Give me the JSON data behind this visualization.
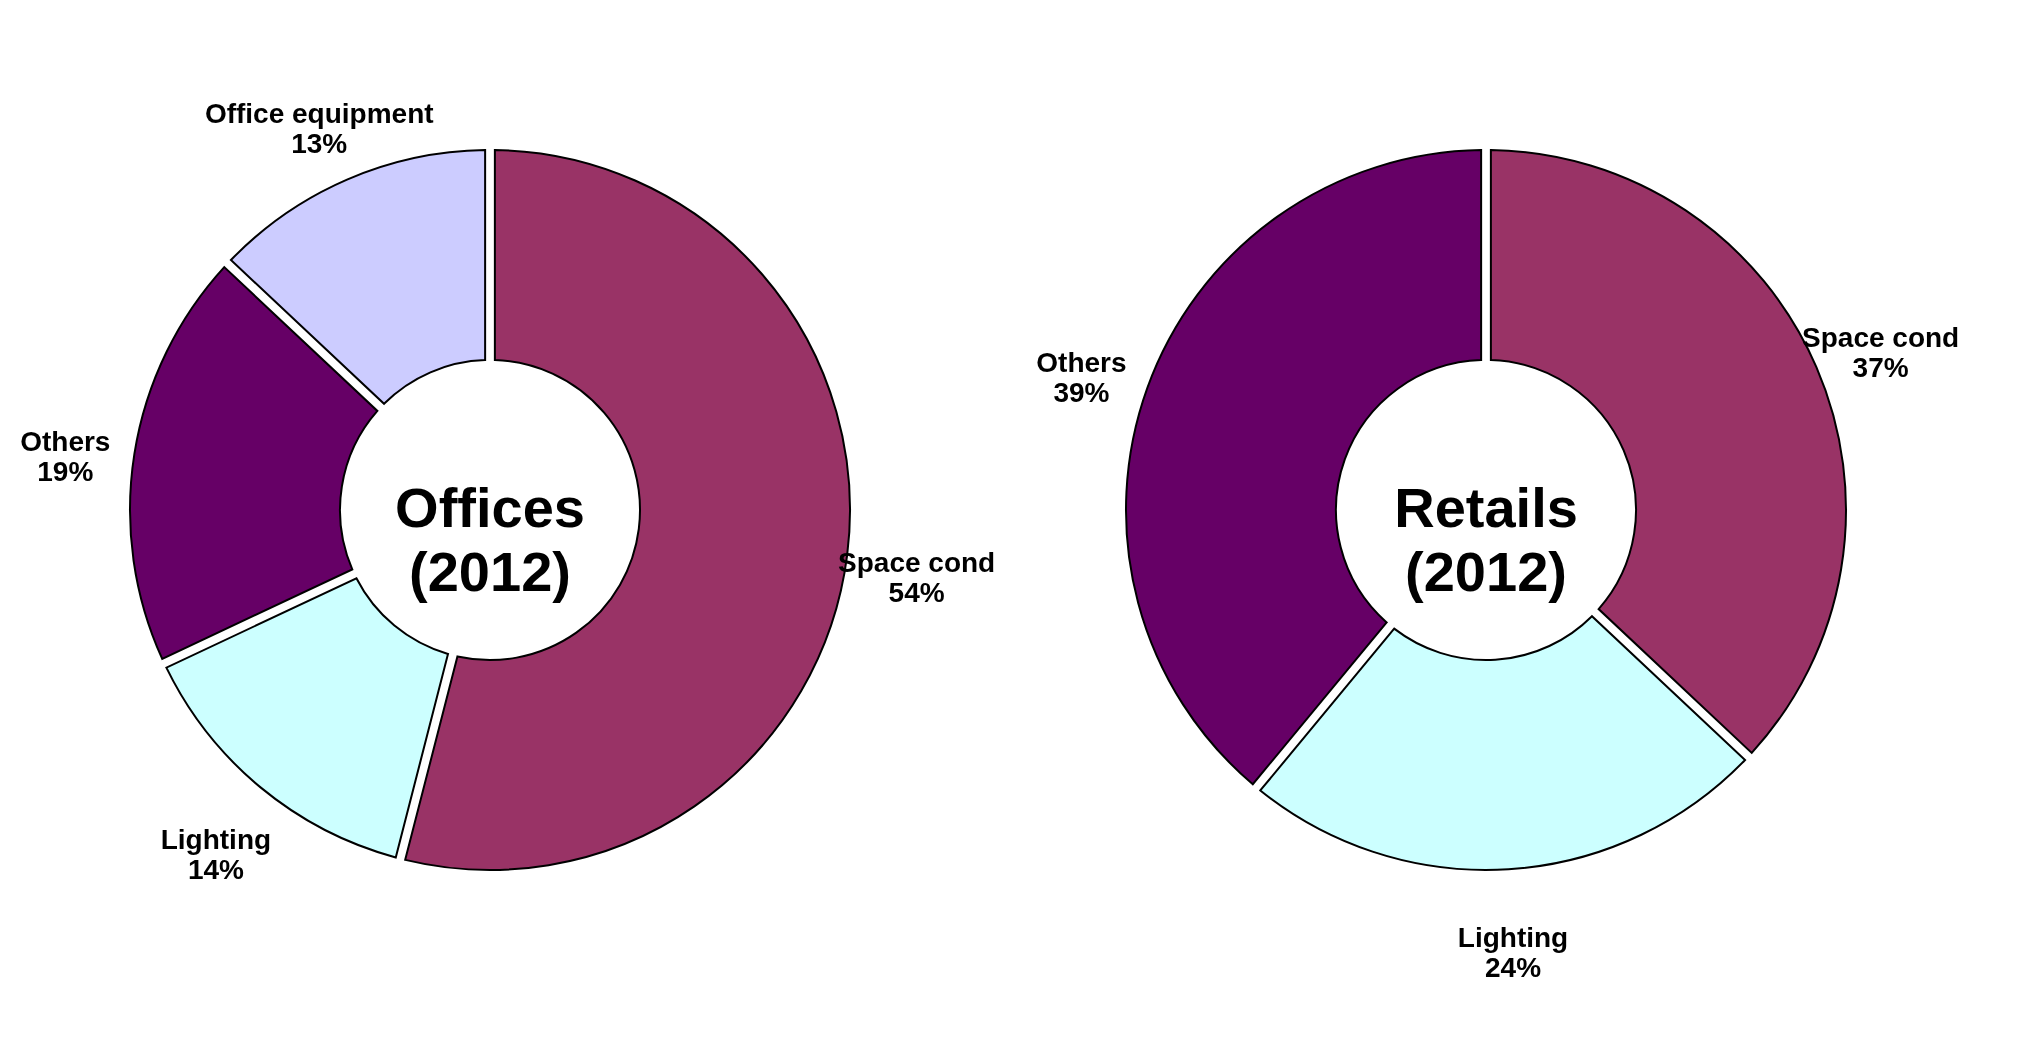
{
  "chart_data": [
    {
      "type": "donut",
      "title": "Offices (2012)",
      "categories": [
        "Space cond",
        "Lighting",
        "Others",
        "Office equipment"
      ],
      "values": [
        54,
        14,
        19,
        13
      ],
      "value_labels": [
        "54%",
        "14%",
        "19%",
        "13%"
      ],
      "colors": [
        "#993366",
        "#ccffff",
        "#660066",
        "#ccccff"
      ]
    },
    {
      "type": "donut",
      "title": "Retails (2012)",
      "categories": [
        "Space cond",
        "Lighting",
        "Others"
      ],
      "values": [
        37,
        24,
        39
      ],
      "value_labels": [
        "37%",
        "24%",
        "39%"
      ],
      "colors": [
        "#993366",
        "#ccffff",
        "#660066"
      ]
    }
  ]
}
